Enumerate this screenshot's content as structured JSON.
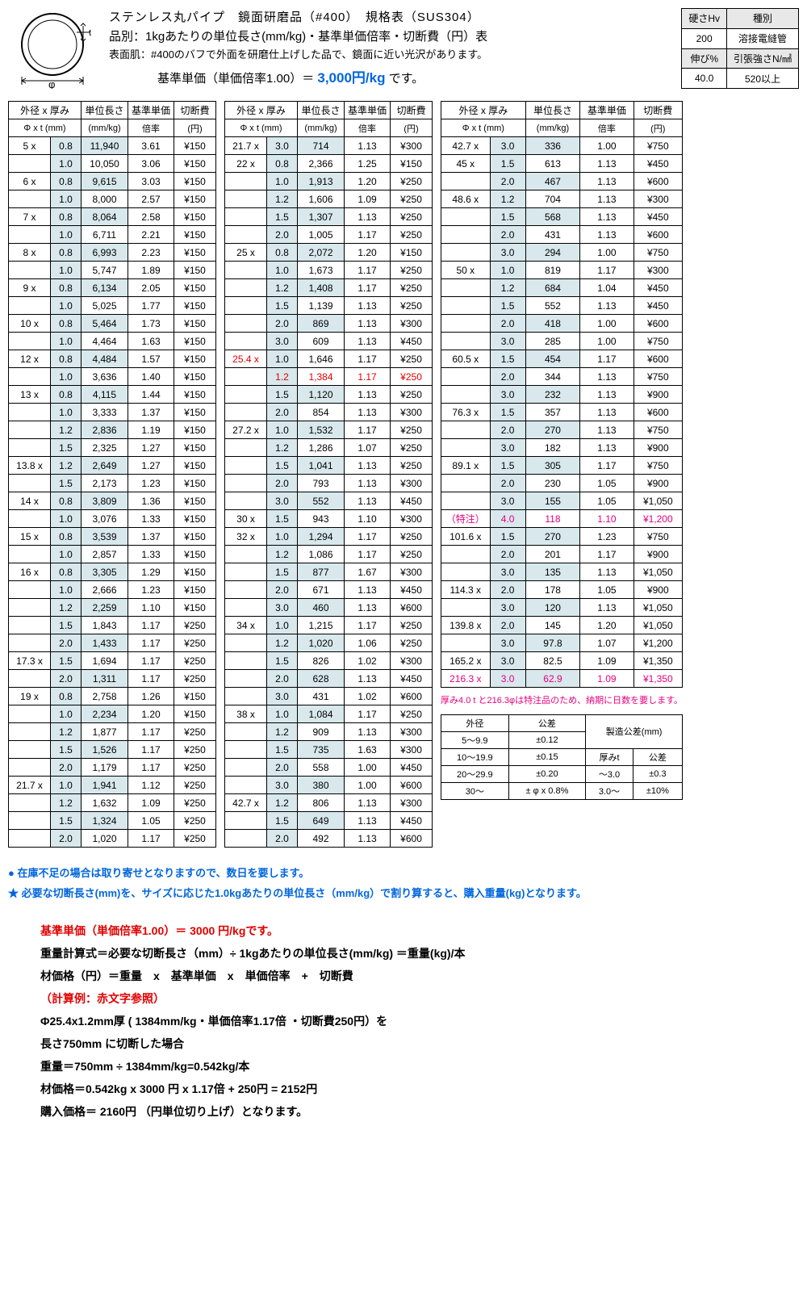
{
  "header": {
    "title": "ステンレス丸パイプ　鏡面研磨品（#400）　規格表（SUS304）",
    "subtitle": "品別：1kgあたりの単位長さ(mm/kg)・基準単価倍率・切断費（円）表",
    "desc": "表面肌：#400のバフで外面を研磨仕上げした品で、鏡面に近い光沢があります。",
    "price_label": "基準単価（単価倍率1.00）＝",
    "price_value": "3,000円/kg",
    "price_suffix": "です。"
  },
  "spec": {
    "h1": "硬さHv",
    "h2": "種別",
    "v1": "200",
    "v2": "溶接電縫管",
    "h3": "伸び%",
    "h4": "引張強さN/㎟",
    "v3": "40.0",
    "v4": "520以上"
  },
  "columns": {
    "c1": "外径 x 厚み",
    "c2": "単位長さ",
    "c3": "基準単価",
    "c4": "切断費",
    "s1": "Φ x t (mm)",
    "s2": "(mm/kg)",
    "s3": "倍率",
    "s4": "(円)"
  },
  "table1": [
    [
      "5 x",
      "0.8",
      "11,940",
      "3.61",
      "¥150",
      1
    ],
    [
      "",
      "1.0",
      "10,050",
      "3.06",
      "¥150",
      0
    ],
    [
      "6 x",
      "0.8",
      "9,615",
      "3.03",
      "¥150",
      1
    ],
    [
      "",
      "1.0",
      "8,000",
      "2.57",
      "¥150",
      0
    ],
    [
      "7 x",
      "0.8",
      "8,064",
      "2.58",
      "¥150",
      1
    ],
    [
      "",
      "1.0",
      "6,711",
      "2.21",
      "¥150",
      0
    ],
    [
      "8 x",
      "0.8",
      "6,993",
      "2.23",
      "¥150",
      1
    ],
    [
      "",
      "1.0",
      "5,747",
      "1.89",
      "¥150",
      0
    ],
    [
      "9 x",
      "0.8",
      "6,134",
      "2.05",
      "¥150",
      1
    ],
    [
      "",
      "1.0",
      "5,025",
      "1.77",
      "¥150",
      0
    ],
    [
      "10 x",
      "0.8",
      "5,464",
      "1.73",
      "¥150",
      1
    ],
    [
      "",
      "1.0",
      "4,464",
      "1.63",
      "¥150",
      0
    ],
    [
      "12 x",
      "0.8",
      "4,484",
      "1.57",
      "¥150",
      1
    ],
    [
      "",
      "1.0",
      "3,636",
      "1.40",
      "¥150",
      0
    ],
    [
      "13 x",
      "0.8",
      "4,115",
      "1.44",
      "¥150",
      1
    ],
    [
      "",
      "1.0",
      "3,333",
      "1.37",
      "¥150",
      0
    ],
    [
      "",
      "1.2",
      "2,836",
      "1.19",
      "¥150",
      1
    ],
    [
      "",
      "1.5",
      "2,325",
      "1.27",
      "¥150",
      0
    ],
    [
      "13.8 x",
      "1.2",
      "2,649",
      "1.27",
      "¥150",
      1
    ],
    [
      "",
      "1.5",
      "2,173",
      "1.23",
      "¥150",
      0
    ],
    [
      "14 x",
      "0.8",
      "3,809",
      "1.36",
      "¥150",
      1
    ],
    [
      "",
      "1.0",
      "3,076",
      "1.33",
      "¥150",
      0
    ],
    [
      "15 x",
      "0.8",
      "3,539",
      "1.37",
      "¥150",
      1
    ],
    [
      "",
      "1.0",
      "2,857",
      "1.33",
      "¥150",
      0
    ],
    [
      "16 x",
      "0.8",
      "3,305",
      "1.29",
      "¥150",
      1
    ],
    [
      "",
      "1.0",
      "2,666",
      "1.23",
      "¥150",
      0
    ],
    [
      "",
      "1.2",
      "2,259",
      "1.10",
      "¥150",
      1
    ],
    [
      "",
      "1.5",
      "1,843",
      "1.17",
      "¥250",
      0
    ],
    [
      "",
      "2.0",
      "1,433",
      "1.17",
      "¥250",
      1
    ],
    [
      "17.3 x",
      "1.5",
      "1,694",
      "1.17",
      "¥250",
      0
    ],
    [
      "",
      "2.0",
      "1,311",
      "1.17",
      "¥250",
      1
    ],
    [
      "19 x",
      "0.8",
      "2,758",
      "1.26",
      "¥150",
      0
    ],
    [
      "",
      "1.0",
      "2,234",
      "1.20",
      "¥150",
      1
    ],
    [
      "",
      "1.2",
      "1,877",
      "1.17",
      "¥250",
      0
    ],
    [
      "",
      "1.5",
      "1,526",
      "1.17",
      "¥250",
      1
    ],
    [
      "",
      "2.0",
      "1,179",
      "1.17",
      "¥250",
      0
    ],
    [
      "21.7 x",
      "1.0",
      "1,941",
      "1.12",
      "¥250",
      1
    ],
    [
      "",
      "1.2",
      "1,632",
      "1.09",
      "¥250",
      0
    ],
    [
      "",
      "1.5",
      "1,324",
      "1.05",
      "¥250",
      1
    ],
    [
      "",
      "2.0",
      "1,020",
      "1.17",
      "¥250",
      0
    ]
  ],
  "table2": [
    [
      "21.7 x",
      "3.0",
      "714",
      "1.13",
      "¥300",
      1,
      0
    ],
    [
      "22 x",
      "0.8",
      "2,366",
      "1.25",
      "¥150",
      0,
      0
    ],
    [
      "",
      "1.0",
      "1,913",
      "1.20",
      "¥250",
      1,
      0
    ],
    [
      "",
      "1.2",
      "1,606",
      "1.09",
      "¥250",
      0,
      0
    ],
    [
      "",
      "1.5",
      "1,307",
      "1.13",
      "¥250",
      1,
      0
    ],
    [
      "",
      "2.0",
      "1,005",
      "1.17",
      "¥250",
      0,
      0
    ],
    [
      "25 x",
      "0.8",
      "2,072",
      "1.20",
      "¥150",
      1,
      0
    ],
    [
      "",
      "1.0",
      "1,673",
      "1.17",
      "¥250",
      0,
      0
    ],
    [
      "",
      "1.2",
      "1,408",
      "1.17",
      "¥250",
      1,
      0
    ],
    [
      "",
      "1.5",
      "1,139",
      "1.13",
      "¥250",
      0,
      0
    ],
    [
      "",
      "2.0",
      "869",
      "1.13",
      "¥300",
      1,
      0
    ],
    [
      "",
      "3.0",
      "609",
      "1.13",
      "¥450",
      0,
      0
    ],
    [
      "25.4 x",
      "1.0",
      "1,646",
      "1.17",
      "¥250",
      0,
      1
    ],
    [
      "",
      "1.2",
      "1,384",
      "1.17",
      "¥250",
      0,
      2
    ],
    [
      "",
      "1.5",
      "1,120",
      "1.13",
      "¥250",
      1,
      0
    ],
    [
      "",
      "2.0",
      "854",
      "1.13",
      "¥300",
      0,
      0
    ],
    [
      "27.2 x",
      "1.0",
      "1,532",
      "1.17",
      "¥250",
      1,
      0
    ],
    [
      "",
      "1.2",
      "1,286",
      "1.07",
      "¥250",
      0,
      0
    ],
    [
      "",
      "1.5",
      "1,041",
      "1.13",
      "¥250",
      1,
      0
    ],
    [
      "",
      "2.0",
      "793",
      "1.13",
      "¥300",
      0,
      0
    ],
    [
      "",
      "3.0",
      "552",
      "1.13",
      "¥450",
      1,
      0
    ],
    [
      "30 x",
      "1.5",
      "943",
      "1.10",
      "¥300",
      0,
      0
    ],
    [
      "32 x",
      "1.0",
      "1,294",
      "1.17",
      "¥250",
      1,
      0
    ],
    [
      "",
      "1.2",
      "1,086",
      "1.17",
      "¥250",
      0,
      0
    ],
    [
      "",
      "1.5",
      "877",
      "1.67",
      "¥300",
      1,
      0
    ],
    [
      "",
      "2.0",
      "671",
      "1.13",
      "¥450",
      0,
      0
    ],
    [
      "",
      "3.0",
      "460",
      "1.13",
      "¥600",
      1,
      0
    ],
    [
      "34 x",
      "1.0",
      "1,215",
      "1.17",
      "¥250",
      0,
      0
    ],
    [
      "",
      "1.2",
      "1,020",
      "1.06",
      "¥250",
      1,
      0
    ],
    [
      "",
      "1.5",
      "826",
      "1.02",
      "¥300",
      0,
      0
    ],
    [
      "",
      "2.0",
      "628",
      "1.13",
      "¥450",
      1,
      0
    ],
    [
      "",
      "3.0",
      "431",
      "1.02",
      "¥600",
      0,
      0
    ],
    [
      "38 x",
      "1.0",
      "1,084",
      "1.17",
      "¥250",
      1,
      0
    ],
    [
      "",
      "1.2",
      "909",
      "1.13",
      "¥300",
      0,
      0
    ],
    [
      "",
      "1.5",
      "735",
      "1.63",
      "¥300",
      1,
      0
    ],
    [
      "",
      "2.0",
      "558",
      "1.00",
      "¥450",
      0,
      0
    ],
    [
      "",
      "3.0",
      "380",
      "1.00",
      "¥600",
      1,
      0
    ],
    [
      "42.7 x",
      "1.2",
      "806",
      "1.13",
      "¥300",
      0,
      0
    ],
    [
      "",
      "1.5",
      "649",
      "1.13",
      "¥450",
      1,
      0
    ],
    [
      "",
      "2.0",
      "492",
      "1.13",
      "¥600",
      0,
      0
    ]
  ],
  "table3": [
    [
      "42.7 x",
      "3.0",
      "336",
      "1.00",
      "¥750",
      1,
      0
    ],
    [
      "45 x",
      "1.5",
      "613",
      "1.13",
      "¥450",
      0,
      0
    ],
    [
      "",
      "2.0",
      "467",
      "1.13",
      "¥600",
      1,
      0
    ],
    [
      "48.6 x",
      "1.2",
      "704",
      "1.13",
      "¥300",
      0,
      0
    ],
    [
      "",
      "1.5",
      "568",
      "1.13",
      "¥450",
      1,
      0
    ],
    [
      "",
      "2.0",
      "431",
      "1.13",
      "¥600",
      0,
      0
    ],
    [
      "",
      "3.0",
      "294",
      "1.00",
      "¥750",
      1,
      0
    ],
    [
      "50 x",
      "1.0",
      "819",
      "1.17",
      "¥300",
      0,
      0
    ],
    [
      "",
      "1.2",
      "684",
      "1.04",
      "¥450",
      1,
      0
    ],
    [
      "",
      "1.5",
      "552",
      "1.13",
      "¥450",
      0,
      0
    ],
    [
      "",
      "2.0",
      "418",
      "1.00",
      "¥600",
      1,
      0
    ],
    [
      "",
      "3.0",
      "285",
      "1.00",
      "¥750",
      0,
      0
    ],
    [
      "60.5 x",
      "1.5",
      "454",
      "1.17",
      "¥600",
      1,
      0
    ],
    [
      "",
      "2.0",
      "344",
      "1.13",
      "¥750",
      0,
      0
    ],
    [
      "",
      "3.0",
      "232",
      "1.13",
      "¥900",
      1,
      0
    ],
    [
      "76.3 x",
      "1.5",
      "357",
      "1.13",
      "¥600",
      0,
      0
    ],
    [
      "",
      "2.0",
      "270",
      "1.13",
      "¥750",
      1,
      0
    ],
    [
      "",
      "3.0",
      "182",
      "1.13",
      "¥900",
      0,
      0
    ],
    [
      "89.1 x",
      "1.5",
      "305",
      "1.17",
      "¥750",
      1,
      0
    ],
    [
      "",
      "2.0",
      "230",
      "1.05",
      "¥900",
      0,
      0
    ],
    [
      "",
      "3.0",
      "155",
      "1.05",
      "¥1,050",
      1,
      0
    ],
    [
      "（特注）",
      "4.0",
      "118",
      "1.10",
      "¥1,200",
      0,
      3
    ],
    [
      "101.6 x",
      "1.5",
      "270",
      "1.23",
      "¥750",
      1,
      0
    ],
    [
      "",
      "2.0",
      "201",
      "1.17",
      "¥900",
      0,
      0
    ],
    [
      "",
      "3.0",
      "135",
      "1.13",
      "¥1,050",
      1,
      0
    ],
    [
      "114.3 x",
      "2.0",
      "178",
      "1.05",
      "¥900",
      0,
      0
    ],
    [
      "",
      "3.0",
      "120",
      "1.13",
      "¥1,050",
      1,
      0
    ],
    [
      "139.8 x",
      "2.0",
      "145",
      "1.20",
      "¥1,050",
      0,
      0
    ],
    [
      "",
      "3.0",
      "97.8",
      "1.07",
      "¥1,200",
      1,
      0
    ],
    [
      "165.2 x",
      "3.0",
      "82.5",
      "1.09",
      "¥1,350",
      0,
      0
    ],
    [
      "216.3 x",
      "3.0",
      "62.9",
      "1.09",
      "¥1,350",
      1,
      3
    ]
  ],
  "note_magenta": "厚み4.0 t と216.3φは特注品のため、納期に日数を要します。",
  "tolerance": {
    "h1": "外径",
    "h2": "公差",
    "h3": "製造公差(mm)",
    "r1a": "5～9.9",
    "r1b": "±0.12",
    "r2a": "10～19.9",
    "r2b": "±0.15",
    "r2c": "厚みt",
    "r2d": "公差",
    "r3a": "20～29.9",
    "r3b": "±0.20",
    "r3c": "～3.0",
    "r3d": "±0.3",
    "r4a": "30～",
    "r4b": "± φ x 0.8%",
    "r4c": "3.0～",
    "r4d": "±10%"
  },
  "notes": {
    "n1": "● 在庫不足の場合は取り寄せとなりますので、数日を要します。",
    "n2": "★ 必要な切断長さ(mm)を、サイズに応じた1.0kgあたりの単位長さ（mm/kg）で割り算すると、購入重量(kg)となります。"
  },
  "calc": {
    "l1": "基準単価（単価倍率1.00）＝ 3000 円/kgです。",
    "l2": "重量計算式＝必要な切断長さ（mm）÷ 1kgあたりの単位長さ(mm/kg) ＝重量(kg)/本",
    "l3": "材価格（円）＝重量　x　基準単価　x　単価倍率　+　切断費",
    "l4": "（計算例：赤文字参照）",
    "l5": "Φ25.4x1.2mm厚 ( 1384mm/kg・単価倍率1.17倍 ・切断費250円）を",
    "l6": "長さ750mm に切断した場合",
    "l7": "重量＝750mm ÷ 1384mm/kg=0.542kg/本",
    "l8": "材価格＝0.542kg x 3000 円 x 1.17倍 + 250円 = 2152円",
    "l9": "購入価格＝ 2160円 （円単位切り上げ）となります。"
  }
}
